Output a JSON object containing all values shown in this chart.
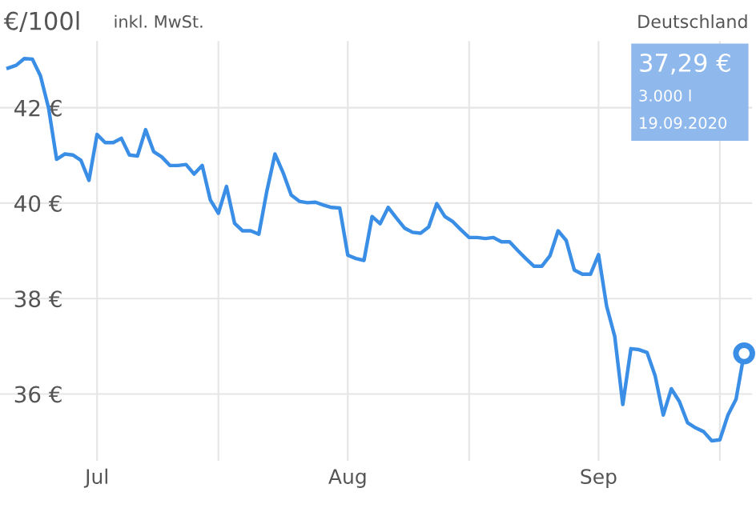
{
  "chart_data": {
    "type": "line",
    "title": "€/100l",
    "subtitle": "inkl. MwSt.",
    "annotations": [
      "Deutschland",
      "37,29 €",
      "3.000 l",
      "19.09.2020"
    ],
    "x": [
      "2020-06-20",
      "2020-06-21",
      "2020-06-22",
      "2020-06-23",
      "2020-06-24",
      "2020-06-25",
      "2020-06-26",
      "2020-06-27",
      "2020-06-28",
      "2020-06-29",
      "2020-06-30",
      "2020-07-01",
      "2020-07-02",
      "2020-07-03",
      "2020-07-04",
      "2020-07-05",
      "2020-07-06",
      "2020-07-07",
      "2020-07-08",
      "2020-07-09",
      "2020-07-10",
      "2020-07-11",
      "2020-07-12",
      "2020-07-13",
      "2020-07-14",
      "2020-07-15",
      "2020-07-16",
      "2020-07-17",
      "2020-07-18",
      "2020-07-19",
      "2020-07-20",
      "2020-07-21",
      "2020-07-22",
      "2020-07-23",
      "2020-07-24",
      "2020-07-25",
      "2020-07-26",
      "2020-07-27",
      "2020-07-28",
      "2020-07-29",
      "2020-07-30",
      "2020-07-31",
      "2020-08-01",
      "2020-08-02",
      "2020-08-03",
      "2020-08-04",
      "2020-08-05",
      "2020-08-06",
      "2020-08-07",
      "2020-08-08",
      "2020-08-09",
      "2020-08-10",
      "2020-08-11",
      "2020-08-12",
      "2020-08-13",
      "2020-08-14",
      "2020-08-15",
      "2020-08-16",
      "2020-08-17",
      "2020-08-18",
      "2020-08-19",
      "2020-08-20",
      "2020-08-21",
      "2020-08-22",
      "2020-08-23",
      "2020-08-24",
      "2020-08-25",
      "2020-08-26",
      "2020-08-27",
      "2020-08-28",
      "2020-08-29",
      "2020-08-30",
      "2020-08-31",
      "2020-09-01",
      "2020-09-02",
      "2020-09-03",
      "2020-09-04",
      "2020-09-05",
      "2020-09-06",
      "2020-09-07",
      "2020-09-08",
      "2020-09-09",
      "2020-09-10",
      "2020-09-11",
      "2020-09-12",
      "2020-09-13",
      "2020-09-14",
      "2020-09-15",
      "2020-09-16",
      "2020-09-17",
      "2020-09-18",
      "2020-09-19"
    ],
    "series": [
      {
        "color": "#3a8ee6",
        "marker": "none",
        "values": [
          42.83,
          42.89,
          43.03,
          43.02,
          42.67,
          42.0,
          40.92,
          41.03,
          41.01,
          40.9,
          40.48,
          41.44,
          41.27,
          41.27,
          41.36,
          41.01,
          40.99,
          41.54,
          41.08,
          40.97,
          40.79,
          40.79,
          40.81,
          40.61,
          40.79,
          40.07,
          39.79,
          40.35,
          39.58,
          39.42,
          39.42,
          39.35,
          40.26,
          41.03,
          40.64,
          40.17,
          40.04,
          40.01,
          40.02,
          39.96,
          39.91,
          39.9,
          38.91,
          38.84,
          38.8,
          39.72,
          39.57,
          39.91,
          39.69,
          39.48,
          39.39,
          39.37,
          39.5,
          39.99,
          39.72,
          39.61,
          39.44,
          39.28,
          39.28,
          39.26,
          39.28,
          39.19,
          39.19,
          39.01,
          38.84,
          38.68,
          38.68,
          38.9,
          39.42,
          39.22,
          38.6,
          38.51,
          38.51,
          38.92,
          37.84,
          37.21,
          35.78,
          36.95,
          36.93,
          36.87,
          36.38,
          35.56,
          36.11,
          35.84,
          35.4,
          35.29,
          35.21,
          35.02,
          35.04,
          35.56,
          35.89,
          36.85
        ]
      },
      {
        "type": "scatter",
        "color": "#3a8ee6",
        "marker": "circle",
        "x": [
          "2020-09-19"
        ],
        "values": [
          36.85
        ]
      }
    ],
    "xlim": [
      "2020-06-19",
      "2020-09-20"
    ],
    "xticks": [
      {
        "value": "2020-07-01",
        "label": "Jul"
      },
      {
        "value": "2020-07-16",
        "label": null
      },
      {
        "value": "2020-08-01",
        "label": "Aug"
      },
      {
        "value": "2020-08-16",
        "label": null
      },
      {
        "value": "2020-09-01",
        "label": "Sep"
      },
      {
        "value": "2020-09-16",
        "label": null
      }
    ],
    "ylim": [
      34.6,
      43.4
    ],
    "yticks": [
      {
        "value": 36,
        "label": "36 €"
      },
      {
        "value": 38,
        "label": "38 €"
      },
      {
        "value": 40,
        "label": "40 €"
      },
      {
        "value": 42,
        "label": "42 €"
      }
    ],
    "grid": true,
    "line_style": "solid"
  }
}
